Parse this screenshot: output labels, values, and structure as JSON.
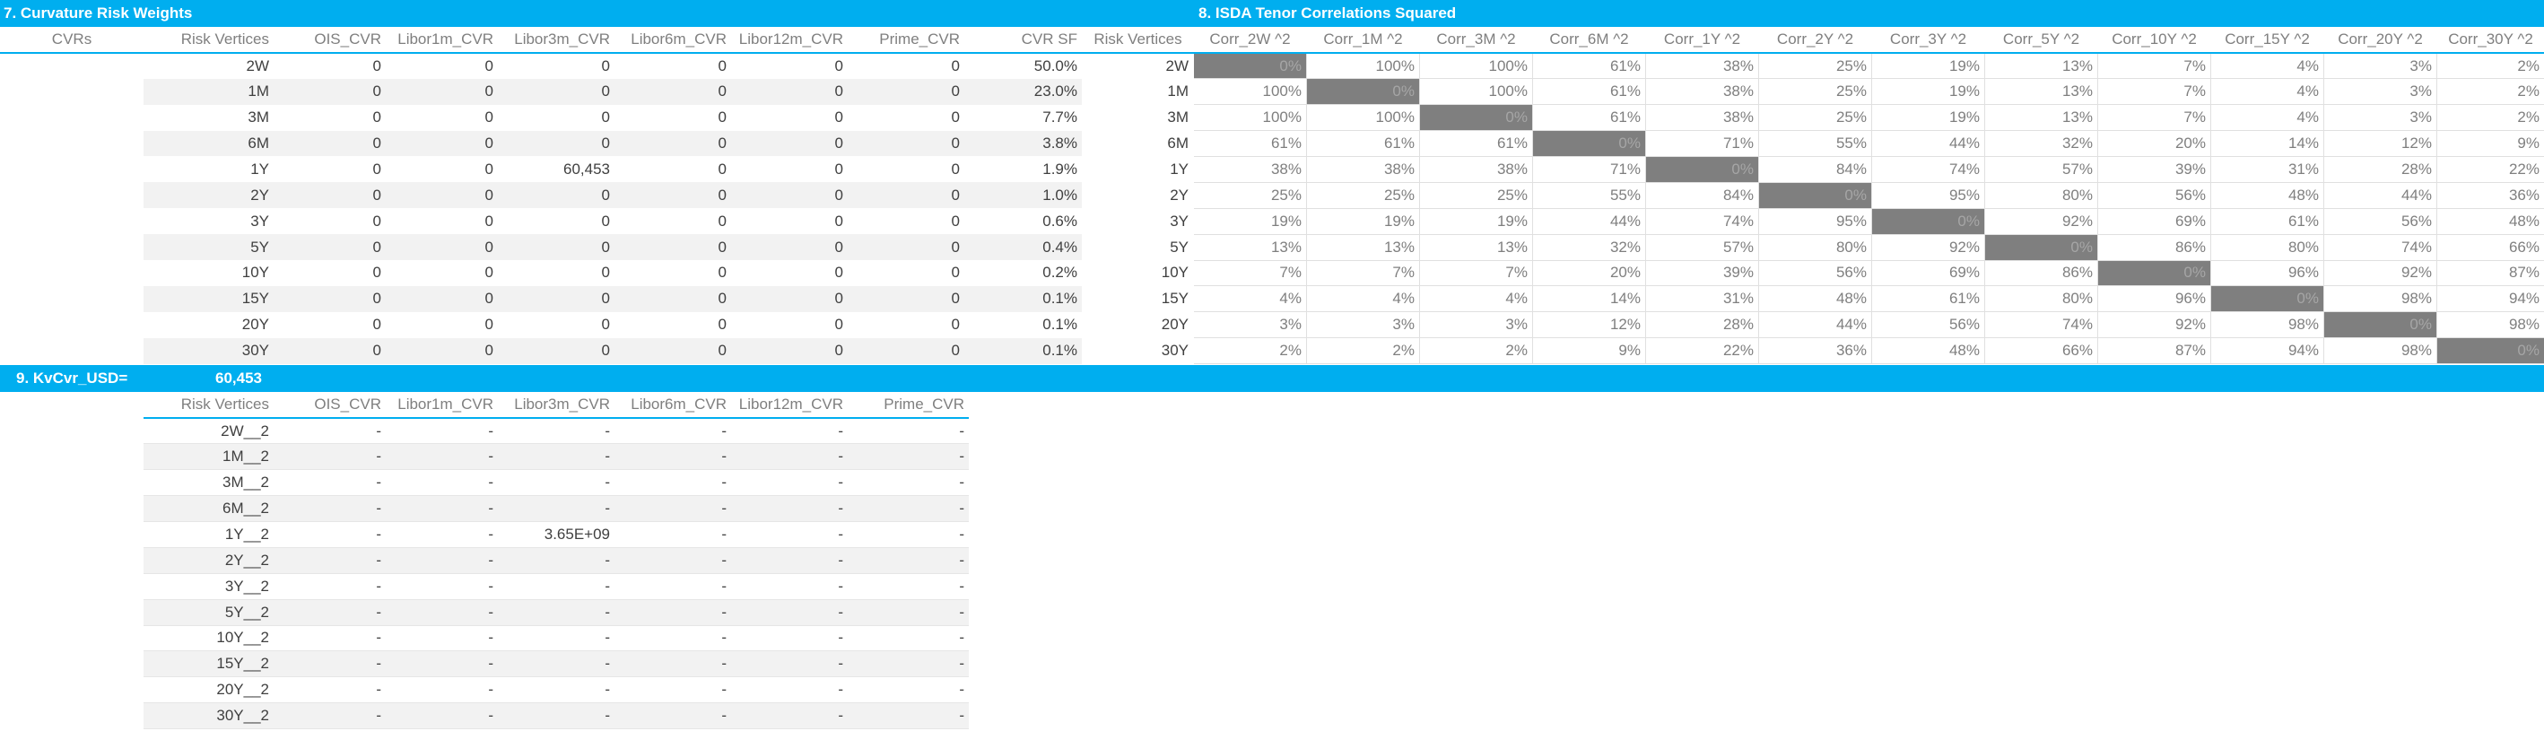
{
  "section7": {
    "title": "7. Curvature Risk Weights",
    "headers": [
      "CVRs",
      "Risk Vertices",
      "OIS_CVR",
      "Libor1m_CVR",
      "Libor3m_CVR",
      "Libor6m_CVR",
      "Libor12m_CVR",
      "Prime_CVR",
      "CVR SF"
    ],
    "rows": [
      {
        "vertex": "2W",
        "values": [
          "0",
          "0",
          "0",
          "0",
          "0",
          "0"
        ],
        "sf": "50.0%"
      },
      {
        "vertex": "1M",
        "values": [
          "0",
          "0",
          "0",
          "0",
          "0",
          "0"
        ],
        "sf": "23.0%"
      },
      {
        "vertex": "3M",
        "values": [
          "0",
          "0",
          "0",
          "0",
          "0",
          "0"
        ],
        "sf": "7.7%"
      },
      {
        "vertex": "6M",
        "values": [
          "0",
          "0",
          "0",
          "0",
          "0",
          "0"
        ],
        "sf": "3.8%"
      },
      {
        "vertex": "1Y",
        "values": [
          "0",
          "0",
          "60,453",
          "0",
          "0",
          "0"
        ],
        "sf": "1.9%"
      },
      {
        "vertex": "2Y",
        "values": [
          "0",
          "0",
          "0",
          "0",
          "0",
          "0"
        ],
        "sf": "1.0%"
      },
      {
        "vertex": "3Y",
        "values": [
          "0",
          "0",
          "0",
          "0",
          "0",
          "0"
        ],
        "sf": "0.6%"
      },
      {
        "vertex": "5Y",
        "values": [
          "0",
          "0",
          "0",
          "0",
          "0",
          "0"
        ],
        "sf": "0.4%"
      },
      {
        "vertex": "10Y",
        "values": [
          "0",
          "0",
          "0",
          "0",
          "0",
          "0"
        ],
        "sf": "0.2%"
      },
      {
        "vertex": "15Y",
        "values": [
          "0",
          "0",
          "0",
          "0",
          "0",
          "0"
        ],
        "sf": "0.1%"
      },
      {
        "vertex": "20Y",
        "values": [
          "0",
          "0",
          "0",
          "0",
          "0",
          "0"
        ],
        "sf": "0.1%"
      },
      {
        "vertex": "30Y",
        "values": [
          "0",
          "0",
          "0",
          "0",
          "0",
          "0"
        ],
        "sf": "0.1%"
      }
    ]
  },
  "section8": {
    "title": "8. ISDA Tenor Correlations Squared",
    "row_header": "Risk Vertices",
    "columns": [
      "Corr_2W ^2",
      "Corr_1M ^2",
      "Corr_3M ^2",
      "Corr_6M ^2",
      "Corr_1Y ^2",
      "Corr_2Y ^2",
      "Corr_3Y ^2",
      "Corr_5Y ^2",
      "Corr_10Y ^2",
      "Corr_15Y ^2",
      "Corr_20Y ^2",
      "Corr_30Y ^2"
    ],
    "rows": [
      {
        "vertex": "2W",
        "values": [
          "0%",
          "100%",
          "100%",
          "61%",
          "38%",
          "25%",
          "19%",
          "13%",
          "7%",
          "4%",
          "3%",
          "2%"
        ]
      },
      {
        "vertex": "1M",
        "values": [
          "100%",
          "0%",
          "100%",
          "61%",
          "38%",
          "25%",
          "19%",
          "13%",
          "7%",
          "4%",
          "3%",
          "2%"
        ]
      },
      {
        "vertex": "3M",
        "values": [
          "100%",
          "100%",
          "0%",
          "61%",
          "38%",
          "25%",
          "19%",
          "13%",
          "7%",
          "4%",
          "3%",
          "2%"
        ]
      },
      {
        "vertex": "6M",
        "values": [
          "61%",
          "61%",
          "61%",
          "0%",
          "71%",
          "55%",
          "44%",
          "32%",
          "20%",
          "14%",
          "12%",
          "9%"
        ]
      },
      {
        "vertex": "1Y",
        "values": [
          "38%",
          "38%",
          "38%",
          "71%",
          "0%",
          "84%",
          "74%",
          "57%",
          "39%",
          "31%",
          "28%",
          "22%"
        ]
      },
      {
        "vertex": "2Y",
        "values": [
          "25%",
          "25%",
          "25%",
          "55%",
          "84%",
          "0%",
          "95%",
          "80%",
          "56%",
          "48%",
          "44%",
          "36%"
        ]
      },
      {
        "vertex": "3Y",
        "values": [
          "19%",
          "19%",
          "19%",
          "44%",
          "74%",
          "95%",
          "0%",
          "92%",
          "69%",
          "61%",
          "56%",
          "48%"
        ]
      },
      {
        "vertex": "5Y",
        "values": [
          "13%",
          "13%",
          "13%",
          "32%",
          "57%",
          "80%",
          "92%",
          "0%",
          "86%",
          "80%",
          "74%",
          "66%"
        ]
      },
      {
        "vertex": "10Y",
        "values": [
          "7%",
          "7%",
          "7%",
          "20%",
          "39%",
          "56%",
          "69%",
          "86%",
          "0%",
          "96%",
          "92%",
          "87%"
        ]
      },
      {
        "vertex": "15Y",
        "values": [
          "4%",
          "4%",
          "4%",
          "14%",
          "31%",
          "48%",
          "61%",
          "80%",
          "96%",
          "0%",
          "98%",
          "94%"
        ]
      },
      {
        "vertex": "20Y",
        "values": [
          "3%",
          "3%",
          "3%",
          "12%",
          "28%",
          "44%",
          "56%",
          "74%",
          "92%",
          "98%",
          "0%",
          "98%"
        ]
      },
      {
        "vertex": "30Y",
        "values": [
          "2%",
          "2%",
          "2%",
          "9%",
          "22%",
          "36%",
          "48%",
          "66%",
          "87%",
          "94%",
          "98%",
          "0%"
        ]
      }
    ]
  },
  "section9": {
    "title": "9. KvCvr_USD=",
    "value": "60,453",
    "headers": [
      "Risk Vertices",
      "OIS_CVR",
      "Libor1m_CVR",
      "Libor3m_CVR",
      "Libor6m_CVR",
      "Libor12m_CVR",
      "Prime_CVR"
    ],
    "rows": [
      {
        "vertex": "2W__2",
        "values": [
          "-",
          "-",
          "-",
          "-",
          "-",
          "-"
        ]
      },
      {
        "vertex": "1M__2",
        "values": [
          "-",
          "-",
          "-",
          "-",
          "-",
          "-"
        ]
      },
      {
        "vertex": "3M__2",
        "values": [
          "-",
          "-",
          "-",
          "-",
          "-",
          "-"
        ]
      },
      {
        "vertex": "6M__2",
        "values": [
          "-",
          "-",
          "-",
          "-",
          "-",
          "-"
        ]
      },
      {
        "vertex": "1Y__2",
        "values": [
          "-",
          "-",
          "3.65E+09",
          "-",
          "-",
          "-"
        ]
      },
      {
        "vertex": "2Y__2",
        "values": [
          "-",
          "-",
          "-",
          "-",
          "-",
          "-"
        ]
      },
      {
        "vertex": "3Y__2",
        "values": [
          "-",
          "-",
          "-",
          "-",
          "-",
          "-"
        ]
      },
      {
        "vertex": "5Y__2",
        "values": [
          "-",
          "-",
          "-",
          "-",
          "-",
          "-"
        ]
      },
      {
        "vertex": "10Y__2",
        "values": [
          "-",
          "-",
          "-",
          "-",
          "-",
          "-"
        ]
      },
      {
        "vertex": "15Y__2",
        "values": [
          "-",
          "-",
          "-",
          "-",
          "-",
          "-"
        ]
      },
      {
        "vertex": "20Y__2",
        "values": [
          "-",
          "-",
          "-",
          "-",
          "-",
          "-"
        ]
      },
      {
        "vertex": "30Y__2",
        "values": [
          "-",
          "-",
          "-",
          "-",
          "-",
          "-"
        ]
      }
    ]
  }
}
